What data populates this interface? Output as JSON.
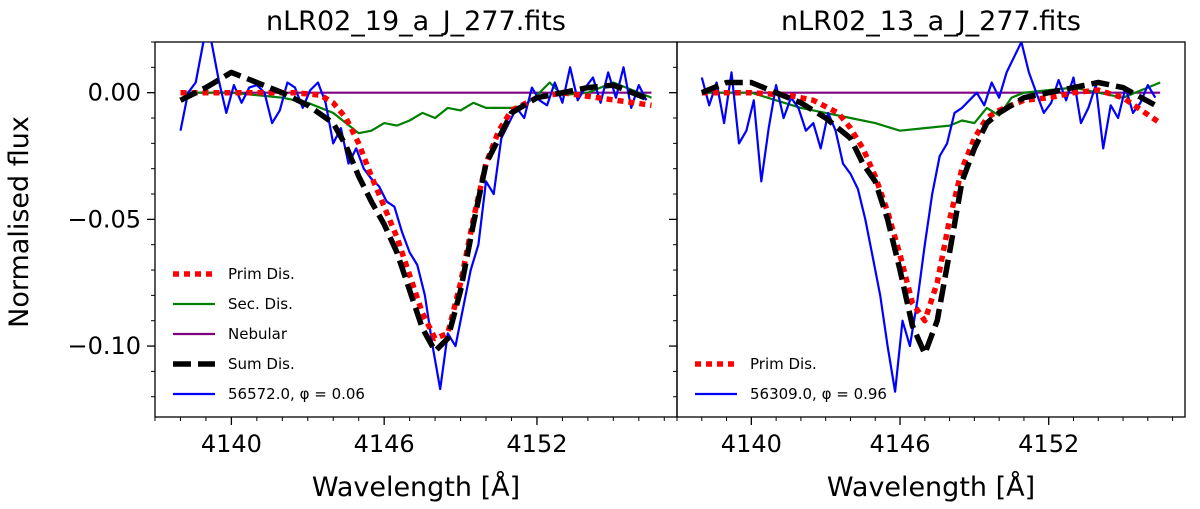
{
  "figure": {
    "ylabel": "Normalised flux"
  },
  "chart_data": [
    {
      "type": "line",
      "title": "nLR02_19_a_J_277.fits",
      "xlabel": "Wavelength [Å]",
      "ylabel": "Normalised flux",
      "xlim": [
        4137.0,
        4157.5
      ],
      "ylim": [
        -0.128,
        0.02
      ],
      "xticks": [
        4140,
        4146,
        4152
      ],
      "yticks": [
        0.0,
        -0.05,
        -0.1
      ],
      "ytick_labels": [
        "0.00",
        "−0.05",
        "−0.10"
      ],
      "legend_position": "lower-left",
      "series": [
        {
          "name": "Prim Dis.",
          "color": "#ff0000",
          "style": "dotted",
          "x": [
            4138.0,
            4141.0,
            4142.5,
            4143.5,
            4144.0,
            4144.5,
            4145.0,
            4145.5,
            4146.0,
            4146.5,
            4147.0,
            4147.5,
            4148.0,
            4148.5,
            4149.0,
            4149.5,
            4150.0,
            4150.5,
            4151.0,
            4152.0,
            4153.0,
            4156.5
          ],
          "y": [
            0.0,
            0.0,
            0.0,
            -0.001,
            -0.004,
            -0.01,
            -0.02,
            -0.033,
            -0.045,
            -0.057,
            -0.072,
            -0.087,
            -0.097,
            -0.095,
            -0.075,
            -0.05,
            -0.028,
            -0.015,
            -0.007,
            -0.002,
            0.0,
            -0.005
          ]
        },
        {
          "name": "Sec. Dis.",
          "color": "#008000",
          "style": "solid",
          "x": [
            4138.0,
            4140.0,
            4141.0,
            4142.0,
            4143.0,
            4144.0,
            4144.5,
            4145.0,
            4145.5,
            4146.0,
            4146.5,
            4147.0,
            4147.5,
            4148.0,
            4148.5,
            4149.0,
            4149.5,
            4150.0,
            4151.0,
            4151.5,
            4152.0,
            4152.5,
            4153.0,
            4154.0,
            4155.0,
            4156.5
          ],
          "y": [
            0.0,
            0.0,
            -0.001,
            -0.002,
            -0.004,
            -0.008,
            -0.012,
            -0.016,
            -0.015,
            -0.012,
            -0.013,
            -0.011,
            -0.008,
            -0.01,
            -0.006,
            -0.007,
            -0.004,
            -0.006,
            -0.006,
            -0.005,
            -0.001,
            0.004,
            -0.001,
            0.0,
            0.004,
            -0.002
          ]
        },
        {
          "name": "Nebular",
          "color": "#800080",
          "style": "solid",
          "x": [
            4138.0,
            4156.5
          ],
          "y": [
            0.0,
            0.0
          ]
        },
        {
          "name": "Sum Dis.",
          "color": "#000000",
          "style": "dashed",
          "x": [
            4138.0,
            4139.0,
            4140.0,
            4141.0,
            4142.0,
            4143.0,
            4144.0,
            4144.5,
            4145.0,
            4145.5,
            4146.0,
            4146.5,
            4147.0,
            4147.5,
            4148.0,
            4148.5,
            4149.0,
            4149.5,
            4150.0,
            4150.5,
            4151.0,
            4152.0,
            4153.0,
            4154.0,
            4155.0,
            4156.5
          ],
          "y": [
            -0.003,
            0.002,
            0.008,
            0.004,
            0.0,
            -0.005,
            -0.012,
            -0.021,
            -0.033,
            -0.043,
            -0.052,
            -0.063,
            -0.078,
            -0.093,
            -0.102,
            -0.097,
            -0.078,
            -0.052,
            -0.028,
            -0.018,
            -0.008,
            -0.002,
            0.0,
            0.002,
            0.003,
            -0.003
          ]
        },
        {
          "name": "56572.0, φ = 0.06",
          "color": "#0000ff",
          "style": "solid",
          "x": [
            4138.0,
            4138.3,
            4138.6,
            4138.9,
            4139.2,
            4139.5,
            4139.8,
            4140.1,
            4140.4,
            4140.7,
            4141.0,
            4141.3,
            4141.6,
            4141.9,
            4142.2,
            4142.5,
            4142.8,
            4143.1,
            4143.4,
            4143.7,
            4144.0,
            4144.3,
            4144.6,
            4144.9,
            4145.2,
            4145.5,
            4145.8,
            4146.1,
            4146.4,
            4146.7,
            4147.0,
            4147.3,
            4147.6,
            4147.9,
            4148.2,
            4148.5,
            4148.8,
            4149.1,
            4149.4,
            4149.7,
            4150.0,
            4150.3,
            4150.6,
            4150.9,
            4151.2,
            4151.5,
            4151.8,
            4152.1,
            4152.4,
            4152.7,
            4153.0,
            4153.3,
            4153.6,
            4153.9,
            4154.2,
            4154.5,
            4154.8,
            4155.1,
            4155.4,
            4155.7,
            4156.0,
            4156.3
          ],
          "y": [
            -0.015,
            0.0,
            0.004,
            0.02,
            0.021,
            0.005,
            -0.008,
            0.003,
            -0.004,
            0.002,
            0.003,
            0.0,
            -0.012,
            -0.007,
            0.004,
            0.002,
            -0.006,
            0.001,
            0.004,
            -0.004,
            -0.02,
            -0.014,
            -0.028,
            -0.022,
            -0.03,
            -0.034,
            -0.037,
            -0.043,
            -0.045,
            -0.055,
            -0.063,
            -0.068,
            -0.08,
            -0.1,
            -0.117,
            -0.095,
            -0.1,
            -0.085,
            -0.07,
            -0.06,
            -0.035,
            -0.04,
            -0.018,
            -0.012,
            -0.006,
            -0.01,
            0.002,
            -0.003,
            -0.005,
            0.004,
            -0.004,
            0.01,
            -0.003,
            0.002,
            0.006,
            -0.004,
            0.008,
            -0.002,
            0.01,
            -0.006,
            0.003,
            -0.003
          ]
        }
      ]
    },
    {
      "type": "line",
      "title": "nLR02_13_a_J_277.fits",
      "xlabel": "Wavelength [Å]",
      "ylabel": "",
      "xlim": [
        4137.0,
        4157.5
      ],
      "ylim": [
        -0.128,
        0.02
      ],
      "xticks": [
        4140,
        4146,
        4152
      ],
      "yticks": [
        0.0,
        -0.05,
        -0.1
      ],
      "legend_position": "lower-left",
      "series": [
        {
          "name": "Prim Dis.",
          "color": "#ff0000",
          "style": "dotted",
          "x": [
            4138.0,
            4140.0,
            4141.5,
            4142.5,
            4143.5,
            4144.0,
            4144.5,
            4145.0,
            4145.5,
            4146.0,
            4146.5,
            4147.0,
            4147.5,
            4148.0,
            4148.5,
            4149.0,
            4149.5,
            4150.0,
            4150.5,
            4151.0,
            4152.0,
            4153.0,
            4154.0,
            4155.0,
            4156.5
          ],
          "y": [
            0.0,
            0.0,
            -0.001,
            -0.003,
            -0.008,
            -0.014,
            -0.022,
            -0.033,
            -0.047,
            -0.064,
            -0.083,
            -0.09,
            -0.075,
            -0.05,
            -0.03,
            -0.018,
            -0.01,
            -0.007,
            -0.005,
            -0.003,
            -0.002,
            0.0,
            0.001,
            -0.002,
            -0.012
          ]
        },
        {
          "name": "Sec. Dis.",
          "color": "#008000",
          "style": "solid",
          "x": [
            4138.0,
            4140.0,
            4141.0,
            4142.0,
            4143.0,
            4144.0,
            4145.0,
            4146.0,
            4147.0,
            4148.0,
            4148.5,
            4149.0,
            4149.5,
            4150.0,
            4150.5,
            4151.0,
            4152.0,
            4153.0,
            4154.0,
            4155.0,
            4156.5
          ],
          "y": [
            0.0,
            0.0,
            -0.003,
            -0.006,
            -0.008,
            -0.01,
            -0.012,
            -0.015,
            -0.014,
            -0.013,
            -0.011,
            -0.012,
            -0.006,
            -0.009,
            -0.002,
            0.0,
            0.001,
            0.002,
            0.0,
            -0.002,
            0.004
          ]
        },
        {
          "name": "Nebular",
          "color": "#800080",
          "style": "solid",
          "x": [
            4138.0,
            4156.5
          ],
          "y": [
            0.0,
            0.0
          ]
        },
        {
          "name": "Sum Dis.",
          "color": "#000000",
          "style": "dashed",
          "x": [
            4138.0,
            4139.0,
            4140.0,
            4141.0,
            4142.0,
            4143.0,
            4144.0,
            4144.5,
            4145.0,
            4145.5,
            4146.0,
            4146.5,
            4147.0,
            4147.5,
            4148.0,
            4148.5,
            4149.0,
            4149.5,
            4150.0,
            4150.5,
            4151.0,
            4152.0,
            4153.0,
            4154.0,
            4155.0,
            4156.5
          ],
          "y": [
            0.0,
            0.004,
            0.004,
            0.0,
            -0.004,
            -0.01,
            -0.018,
            -0.028,
            -0.035,
            -0.05,
            -0.07,
            -0.092,
            -0.103,
            -0.09,
            -0.063,
            -0.035,
            -0.022,
            -0.012,
            -0.008,
            -0.005,
            -0.002,
            0.0,
            0.002,
            0.004,
            0.002,
            -0.006
          ]
        },
        {
          "name": "56309.0, φ = 0.96",
          "color": "#0000ff",
          "style": "solid",
          "x": [
            4138.0,
            4138.3,
            4138.6,
            4138.9,
            4139.2,
            4139.5,
            4139.8,
            4140.1,
            4140.4,
            4140.7,
            4141.0,
            4141.3,
            4141.6,
            4141.9,
            4142.2,
            4142.5,
            4142.8,
            4143.1,
            4143.4,
            4143.7,
            4144.0,
            4144.3,
            4144.6,
            4144.9,
            4145.2,
            4145.5,
            4145.8,
            4146.1,
            4146.4,
            4146.7,
            4147.0,
            4147.3,
            4147.6,
            4147.9,
            4148.2,
            4148.5,
            4148.8,
            4149.1,
            4149.4,
            4149.7,
            4150.0,
            4150.3,
            4150.6,
            4150.9,
            4151.2,
            4151.5,
            4151.8,
            4152.1,
            4152.4,
            4152.7,
            4153.0,
            4153.3,
            4153.6,
            4153.9,
            4154.2,
            4154.5,
            4154.8,
            4155.1,
            4155.4,
            4155.7,
            4156.0,
            4156.3
          ],
          "y": [
            0.006,
            -0.005,
            0.004,
            -0.012,
            0.008,
            -0.02,
            -0.015,
            -0.003,
            -0.035,
            -0.014,
            0.003,
            -0.01,
            -0.002,
            -0.006,
            -0.015,
            -0.012,
            -0.022,
            -0.008,
            -0.015,
            -0.028,
            -0.032,
            -0.038,
            -0.05,
            -0.065,
            -0.08,
            -0.1,
            -0.118,
            -0.09,
            -0.1,
            -0.082,
            -0.06,
            -0.04,
            -0.025,
            -0.02,
            -0.008,
            -0.006,
            -0.003,
            0.0,
            -0.005,
            0.004,
            -0.002,
            0.008,
            0.014,
            0.02,
            0.008,
            0.0,
            -0.008,
            -0.004,
            0.005,
            -0.003,
            0.006,
            -0.012,
            -0.006,
            0.003,
            -0.022,
            -0.005,
            -0.01,
            0.002,
            -0.008,
            -0.004,
            0.003,
            -0.002
          ]
        }
      ]
    }
  ]
}
